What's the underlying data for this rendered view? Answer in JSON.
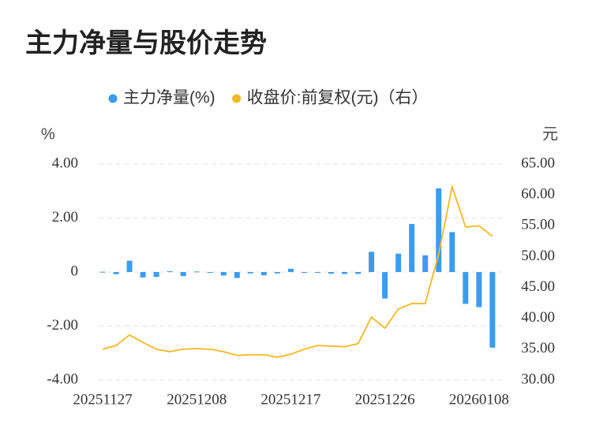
{
  "chart_data": {
    "type": "bar",
    "title": "主力净量与股价走势",
    "y_label": "%",
    "y2_label": "元",
    "categories": [
      "20251127",
      null,
      null,
      null,
      null,
      null,
      null,
      "20251208",
      null,
      null,
      null,
      null,
      null,
      null,
      "20251217",
      null,
      null,
      null,
      null,
      null,
      null,
      "20251226",
      null,
      null,
      null,
      null,
      null,
      null,
      "20260108",
      null
    ],
    "series": [
      {
        "name": "主力净量(%)",
        "type": "bar",
        "axis": "y",
        "color": "#3a9cf0",
        "values": [
          0.01,
          -0.08,
          0.42,
          -0.2,
          -0.18,
          0.03,
          -0.15,
          0.02,
          -0.03,
          -0.13,
          -0.22,
          -0.05,
          -0.12,
          -0.05,
          0.12,
          -0.03,
          -0.02,
          -0.06,
          -0.07,
          -0.07,
          0.75,
          -0.98,
          0.68,
          1.78,
          0.62,
          3.1,
          1.48,
          -1.18,
          -1.3,
          -2.8
        ]
      },
      {
        "name": "收盘价:前复权(元)（右）",
        "type": "line",
        "axis": "y2",
        "color": "#f5b820",
        "values": [
          35.0,
          35.6,
          37.3,
          36.1,
          35.0,
          34.6,
          35.0,
          35.1,
          35.0,
          34.6,
          34.0,
          34.1,
          34.1,
          33.7,
          34.2,
          35.0,
          35.6,
          35.5,
          35.4,
          35.9,
          40.2,
          38.4,
          41.5,
          42.4,
          42.4,
          50.4,
          61.3,
          54.8,
          55.0,
          53.3
        ]
      }
    ],
    "ylim": [
      -4,
      4
    ],
    "yticks": [
      {
        "value": 4,
        "label": "4.00"
      },
      {
        "value": 2,
        "label": "2.00"
      },
      0,
      {
        "value": -2,
        "label": "-2.00"
      },
      {
        "value": -4,
        "label": "-4.00"
      }
    ],
    "y2lim": [
      30,
      65
    ],
    "y2ticks": [
      {
        "value": 65,
        "label": "65.00"
      },
      {
        "value": 60,
        "label": "60.00"
      },
      {
        "value": 55,
        "label": "55.00"
      },
      {
        "value": 50,
        "label": "50.00"
      },
      {
        "value": 45,
        "label": "45.00"
      },
      {
        "value": 40,
        "label": "40.00"
      },
      {
        "value": 35,
        "label": "35.00"
      },
      {
        "value": 30,
        "label": "30.00"
      }
    ],
    "grid": true
  }
}
